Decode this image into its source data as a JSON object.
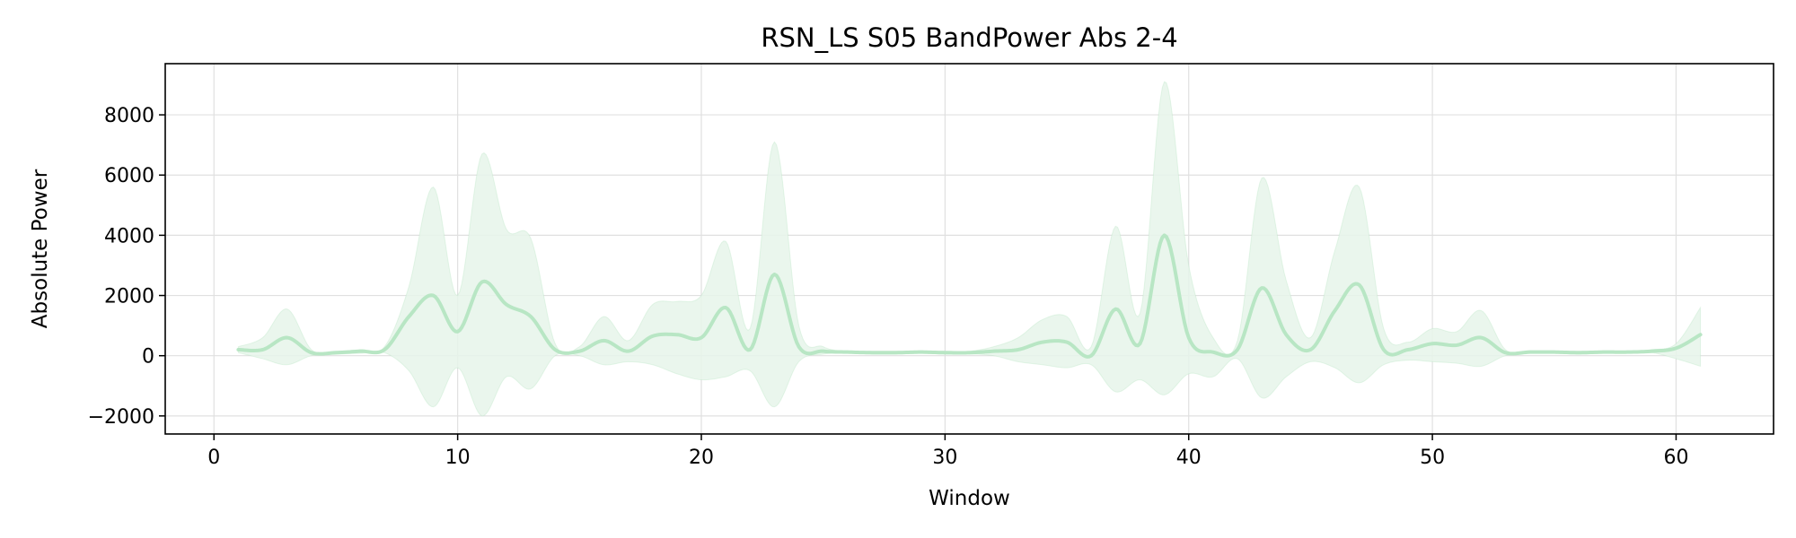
{
  "chart_data": {
    "type": "line",
    "title": "RSN_LS S05 BandPower Abs 2-4",
    "xlabel": "Window",
    "ylabel": "Absolute Power",
    "xlim": [
      -2,
      64
    ],
    "ylim": [
      -2600,
      9700
    ],
    "xticks": [
      0,
      10,
      20,
      30,
      40,
      50,
      60
    ],
    "xtick_labels": [
      "0",
      "10",
      "20",
      "30",
      "40",
      "50",
      "60"
    ],
    "yticks": [
      -2000,
      0,
      2000,
      4000,
      6000,
      8000
    ],
    "ytick_labels": [
      "−2000",
      "0",
      "2000",
      "4000",
      "6000",
      "8000"
    ],
    "grid": true,
    "legend": "none",
    "colors": {
      "line": "#b8e6c4",
      "band": "#e6f5ea",
      "grid": "#e0e0e0",
      "axes": "#000000"
    },
    "series": [
      {
        "x": [
          1,
          2,
          3,
          4,
          5,
          6,
          7,
          8,
          9,
          10,
          11,
          12,
          13,
          14,
          15,
          16,
          17,
          18,
          19,
          20,
          21,
          22,
          23,
          24,
          25,
          26,
          27,
          28,
          29,
          30,
          31,
          32,
          33,
          34,
          35,
          36,
          37,
          38,
          39,
          40,
          41,
          42,
          43,
          44,
          45,
          46,
          47,
          48,
          49,
          50,
          51,
          52,
          53,
          54,
          55,
          56,
          57,
          58,
          59,
          60,
          61
        ],
        "mean": [
          200,
          200,
          600,
          100,
          100,
          150,
          200,
          1300,
          2000,
          800,
          2450,
          1700,
          1300,
          200,
          150,
          500,
          150,
          650,
          700,
          600,
          1600,
          200,
          2700,
          300,
          150,
          120,
          100,
          100,
          120,
          100,
          100,
          150,
          200,
          450,
          450,
          0,
          1550,
          400,
          4000,
          600,
          120,
          200,
          2250,
          700,
          200,
          1500,
          2350,
          200,
          200,
          400,
          350,
          600,
          100,
          120,
          120,
          100,
          120,
          120,
          150,
          250,
          700
        ],
        "upper": [
          300,
          600,
          1550,
          200,
          150,
          200,
          300,
          2300,
          5600,
          2000,
          6700,
          4200,
          3900,
          400,
          300,
          1300,
          500,
          1700,
          1800,
          2000,
          3800,
          900,
          7100,
          1000,
          300,
          150,
          150,
          150,
          150,
          150,
          150,
          300,
          600,
          1200,
          1300,
          300,
          4300,
          1400,
          9100,
          3000,
          600,
          500,
          5900,
          2500,
          600,
          3500,
          5600,
          900,
          450,
          900,
          800,
          1500,
          200,
          150,
          150,
          150,
          150,
          150,
          200,
          400,
          1600
        ],
        "lower": [
          100,
          -100,
          -300,
          0,
          50,
          80,
          100,
          -500,
          -1700,
          -400,
          -2000,
          -700,
          -1100,
          0,
          0,
          -300,
          -200,
          -300,
          -600,
          -800,
          -700,
          -500,
          -1700,
          -200,
          50,
          90,
          60,
          60,
          80,
          60,
          60,
          0,
          -200,
          -300,
          -400,
          -300,
          -1200,
          -800,
          -1300,
          -600,
          -700,
          -100,
          -1400,
          -700,
          -200,
          -400,
          -900,
          -300,
          -150,
          -200,
          -250,
          -350,
          0,
          80,
          80,
          60,
          80,
          80,
          100,
          -100,
          -350
        ]
      }
    ]
  }
}
